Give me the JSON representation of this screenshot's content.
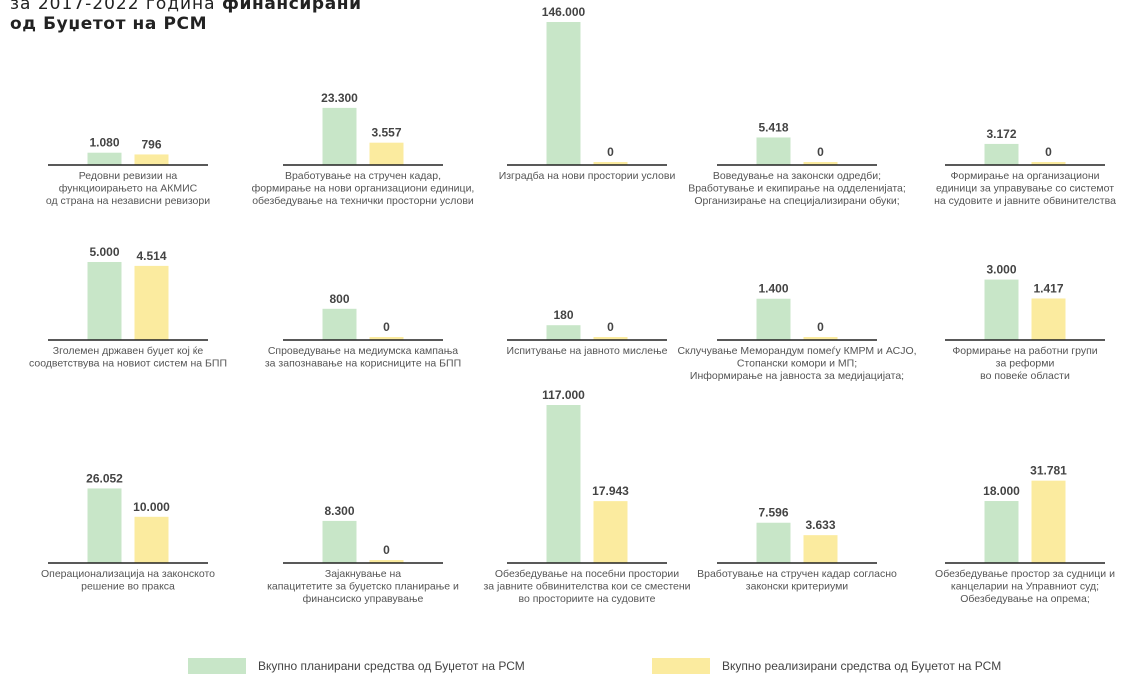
{
  "header": {
    "line1_light": "за 2017-2022 година ",
    "line1_bold": "финансирани",
    "line2_bold": "од Буџетот на РСМ"
  },
  "colors": {
    "planned": "#c8e6c8",
    "realized": "#fbeb9f",
    "baseline": "#222222",
    "value_text": "#444444",
    "caption_text": "#555555"
  },
  "legend": {
    "planned": "Вкупно планирани средства од Буџетот на РСМ",
    "realized": "Вкупно реализирани средства од Буџетот на РСМ"
  },
  "chart_data": [
    {
      "type": "bar",
      "series_keys": [
        "planned",
        "realized"
      ],
      "values": [
        1080,
        796
      ],
      "value_labels": [
        "1.080",
        "796"
      ],
      "caption": [
        "Редовни ревизии на",
        "функциоирањето на АКМИС",
        "од страна на независни ревизори"
      ]
    },
    {
      "type": "bar",
      "series_keys": [
        "planned",
        "realized"
      ],
      "values": [
        23300,
        3557
      ],
      "value_labels": [
        "23.300",
        "3.557"
      ],
      "caption": [
        "Вработување на стручен кадар,",
        "формирање на нови организациони единици,",
        "обезбедување на технички просторни услови"
      ]
    },
    {
      "type": "bar",
      "series_keys": [
        "planned",
        "realized"
      ],
      "values": [
        146000,
        0
      ],
      "value_labels": [
        "146.000",
        "0"
      ],
      "caption": [
        "Изградба на нови простории услови"
      ]
    },
    {
      "type": "bar",
      "series_keys": [
        "planned",
        "realized"
      ],
      "values": [
        5418,
        0
      ],
      "value_labels": [
        "5.418",
        "0"
      ],
      "caption": [
        "Воведување на законски одредби;",
        "Вработување и екипирање на одделенијата;",
        "Организирање на специјализирани обуки;"
      ]
    },
    {
      "type": "bar",
      "series_keys": [
        "planned",
        "realized"
      ],
      "values": [
        3172,
        0
      ],
      "value_labels": [
        "3.172",
        "0"
      ],
      "caption": [
        "Формирање на организациони",
        "единици за управување со системот",
        "на судовите и јавните обвинителства"
      ]
    },
    {
      "type": "bar",
      "series_keys": [
        "planned",
        "realized"
      ],
      "values": [
        5000,
        4514
      ],
      "value_labels": [
        "5.000",
        "4.514"
      ],
      "caption": [
        "Зголемен државен буџет кој ќе",
        "соодветствува на новиот систем на БПП"
      ]
    },
    {
      "type": "bar",
      "series_keys": [
        "planned",
        "realized"
      ],
      "values": [
        800,
        0
      ],
      "value_labels": [
        "800",
        "0"
      ],
      "caption": [
        "Спроведување на медиумска кампања",
        "за запознавање на корисниците на БПП"
      ]
    },
    {
      "type": "bar",
      "series_keys": [
        "planned",
        "realized"
      ],
      "values": [
        180,
        0
      ],
      "value_labels": [
        "180",
        "0"
      ],
      "caption": [
        "Испитување на јавното мислење"
      ]
    },
    {
      "type": "bar",
      "series_keys": [
        "planned",
        "realized"
      ],
      "values": [
        1400,
        0
      ],
      "value_labels": [
        "1.400",
        "0"
      ],
      "caption": [
        "Склучување Меморандум помеѓу КМРМ и АСЈО,",
        "Стопански комори и МП;",
        "Информирање на јавноста за медијацијата;"
      ]
    },
    {
      "type": "bar",
      "series_keys": [
        "planned",
        "realized"
      ],
      "values": [
        3000,
        1417
      ],
      "value_labels": [
        "3.000",
        "1.417"
      ],
      "caption": [
        "Формирање на работни групи",
        "за реформи",
        "во повеќе области"
      ]
    },
    {
      "type": "bar",
      "series_keys": [
        "planned",
        "realized"
      ],
      "values": [
        26052,
        10000
      ],
      "value_labels": [
        "26.052",
        "10.000"
      ],
      "caption": [
        "Операционализација на законското",
        "решение во пракса"
      ]
    },
    {
      "type": "bar",
      "series_keys": [
        "planned",
        "realized"
      ],
      "values": [
        8300,
        0
      ],
      "value_labels": [
        "8.300",
        "0"
      ],
      "caption": [
        "Зајакнување на",
        "капацитетите за буџетско планирање и",
        "финансиско управување"
      ]
    },
    {
      "type": "bar",
      "series_keys": [
        "planned",
        "realized"
      ],
      "values": [
        117000,
        17943
      ],
      "value_labels": [
        "117.000",
        "17.943"
      ],
      "caption": [
        "Обезбедување на посебни простории",
        "за јавните обвинителства кои се сместени",
        "во просториите на судовите"
      ]
    },
    {
      "type": "bar",
      "series_keys": [
        "planned",
        "realized"
      ],
      "values": [
        7596,
        3633
      ],
      "value_labels": [
        "7.596",
        "3.633"
      ],
      "caption": [
        "Вработување на стручен кадар согласно",
        "законски критериуми"
      ]
    },
    {
      "type": "bar",
      "series_keys": [
        "planned",
        "realized"
      ],
      "values": [
        18000,
        31781
      ],
      "value_labels": [
        "18.000",
        "31.781"
      ],
      "caption": [
        "Обезбедување простор за судници и",
        "канцеларии на Управниот суд;",
        "Обезбедување на опрема;"
      ]
    }
  ]
}
